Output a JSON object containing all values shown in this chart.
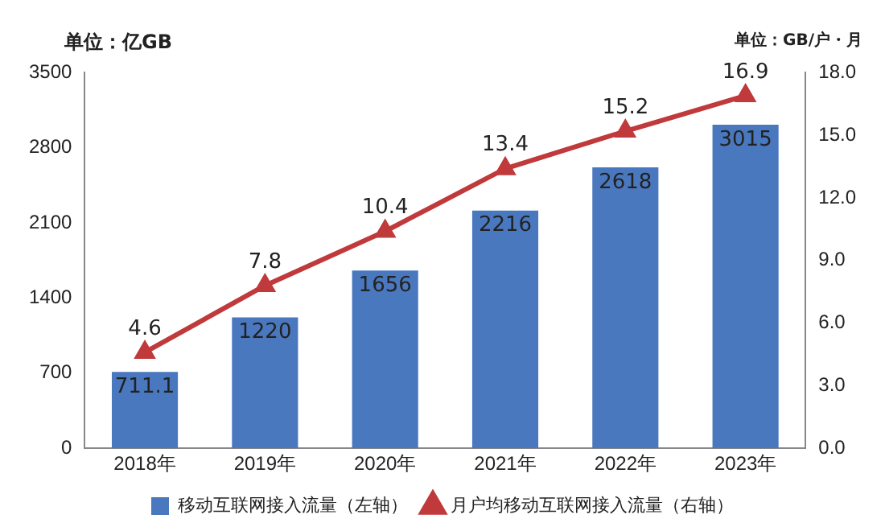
{
  "chart_data": {
    "type": "bar",
    "ylabel": "单位：亿GB",
    "y2label": "单位：GB/户・月",
    "categories": [
      "2018年",
      "2019年",
      "2020年",
      "2021年",
      "2022年",
      "2023年"
    ],
    "series": [
      {
        "name": "移动互联网接入流量（左轴）",
        "color": "#4a78bf",
        "values": [
          711.1,
          1220,
          1656,
          2216,
          2618,
          3015
        ]
      },
      {
        "name": "月户均移动互联网接入流量（右轴）",
        "type": "line",
        "axis": "y2",
        "color": "#c0393b",
        "marker": "triangle",
        "values": [
          4.6,
          7.8,
          10.4,
          13.4,
          15.2,
          16.9
        ]
      }
    ],
    "ylim": [
      0,
      3500
    ],
    "yticks": [
      0,
      700,
      1400,
      2100,
      2800,
      3500
    ],
    "y2lim": [
      0,
      18
    ],
    "y2ticks": [
      {
        "value": 0,
        "label": "0.0"
      },
      {
        "value": 3,
        "label": "3.0"
      },
      {
        "value": 6,
        "label": "6.0"
      },
      {
        "value": 9,
        "label": "9.0"
      },
      {
        "value": 12,
        "label": "12.0"
      },
      {
        "value": 15,
        "label": "15.0"
      },
      {
        "value": 18,
        "label": "18.0"
      }
    ],
    "data_labels": true,
    "grid": false,
    "legend": "bottom"
  }
}
